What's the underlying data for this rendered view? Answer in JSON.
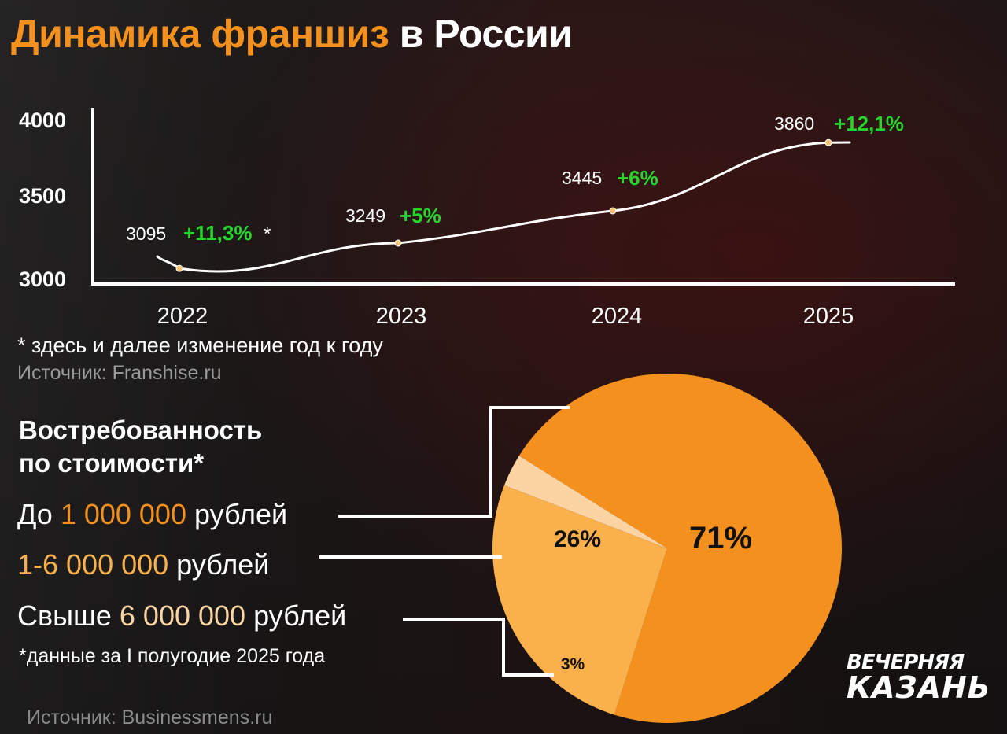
{
  "title_accent": "Динамика франшиз",
  "title_rest": " в России",
  "chart_data": [
    {
      "type": "line",
      "x": [
        "2022",
        "2023",
        "2024",
        "2025"
      ],
      "values": [
        3095,
        3249,
        3445,
        3860
      ],
      "value_labels": [
        "3095",
        "3249",
        "3445",
        "3860"
      ],
      "change_labels": [
        "+11,3%",
        "+5%",
        "+6%",
        "+12,1%"
      ],
      "change_star": "*",
      "yticks": [
        "3000",
        "3500",
        "4000"
      ],
      "ylim": [
        3000,
        4000
      ],
      "colors": {
        "line": "#ffffff",
        "change": "#25d52a",
        "point": "#f7c472"
      }
    },
    {
      "type": "pie",
      "title_line1": "Востребованность",
      "title_line2": "по стоимости*",
      "values": [
        71,
        26,
        3
      ],
      "labels": [
        "71%",
        "26%",
        "3%"
      ],
      "colors": [
        "#f3901e",
        "#fab04b",
        "#fcd4a3"
      ],
      "legend": [
        {
          "prefix": "До ",
          "amount": "1 000 000",
          "suffix": " рублей"
        },
        {
          "prefix": "",
          "amount": "1-6 000 000",
          "suffix": " рублей"
        },
        {
          "prefix": "Свыше ",
          "amount": "6 000 000",
          "suffix": " рублей"
        }
      ]
    }
  ],
  "notes": {
    "footnote_line": "* здесь и далее изменение год к году",
    "source_line": "Источник: Franshise.ru",
    "data_note": "*данные за I полугодие 2025 года",
    "source2": "Источник: Businessmens.ru"
  },
  "logo": {
    "line1": "ВЕЧЕРНЯЯ",
    "line2": "КАЗАНЬ"
  }
}
